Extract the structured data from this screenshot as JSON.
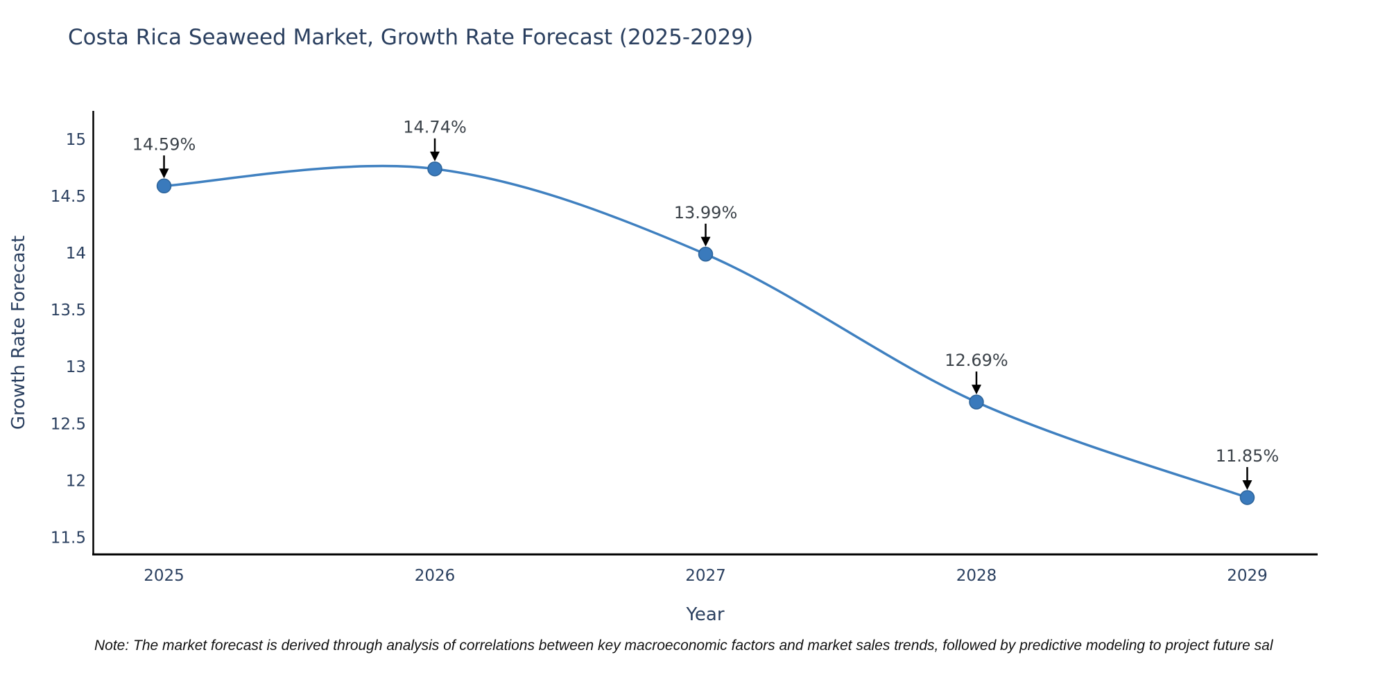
{
  "title": {
    "text": "Costa Rica Seaweed Market, Growth Rate Forecast (2025-2029)",
    "color": "#2a3f5f"
  },
  "note": {
    "text": "Note: The market forecast is derived through analysis of correlations between key macroeconomic factors and market sales trends, followed by predictive modeling to project future sal"
  },
  "chart_data": {
    "type": "line",
    "title": "Costa Rica Seaweed Market, Growth Rate Forecast (2025-2029)",
    "xlabel": "Year",
    "ylabel": "Growth Rate Forecast",
    "x": [
      2025,
      2026,
      2027,
      2028,
      2029
    ],
    "series": [
      {
        "name": "Growth Rate Forecast",
        "values": [
          14.59,
          14.74,
          13.99,
          12.69,
          11.85
        ]
      }
    ],
    "point_labels": [
      "14.59%",
      "14.74%",
      "13.99%",
      "12.69%",
      "11.85%"
    ],
    "xticks": [
      2025,
      2026,
      2027,
      2028,
      2029
    ],
    "xtick_labels": [
      "2025",
      "2026",
      "2027",
      "2028",
      "2029"
    ],
    "yticks": [
      11.5,
      12,
      12.5,
      13,
      13.5,
      14,
      14.5,
      15
    ],
    "ytick_labels": [
      "11.5",
      "12",
      "12.5",
      "13",
      "13.5",
      "14",
      "14.5",
      "15"
    ],
    "xlim": [
      2024.74,
      2029.26
    ],
    "ylim": [
      11.35,
      15.25
    ],
    "grid": false,
    "legend": false,
    "line_shape": "spline",
    "colors": {
      "line": "#3f80c0",
      "marker_fill": "#3a7abc",
      "marker_edge": "#2c6399",
      "axis": "#000000",
      "tick_text": "#2a3f5f",
      "annotation_text": "#3a4148",
      "arrow": "#000000"
    }
  }
}
